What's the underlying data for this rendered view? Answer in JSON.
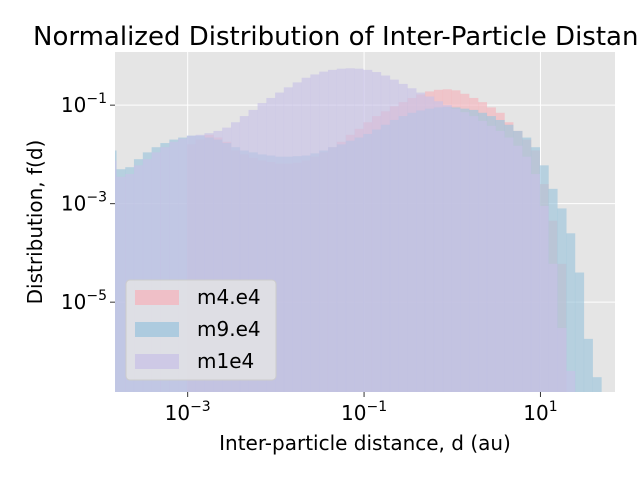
{
  "chart_data": {
    "type": "histogram",
    "title": "Normalized Distribution of Inter-Particle Distan",
    "xlabel": "Inter-particle distance, d (au)",
    "ylabel": "Distribution, f(d)",
    "xscale": "log",
    "yscale": "log",
    "xlim": [
      0.00015,
      70
    ],
    "ylim": [
      1.5e-07,
      1.2
    ],
    "grid": true,
    "legend_position": "lower-left",
    "xticks": [
      {
        "base": "10",
        "exp": "−3",
        "value": 0.001
      },
      {
        "base": "10",
        "exp": "−1",
        "value": 0.1
      },
      {
        "base": "10",
        "exp": "1",
        "value": 10
      }
    ],
    "yticks": [
      {
        "base": "10",
        "exp": "−1",
        "value": 0.1
      },
      {
        "base": "10",
        "exp": "−3",
        "value": 0.001
      },
      {
        "base": "10",
        "exp": "−5",
        "value": 1e-05
      }
    ],
    "series": [
      {
        "name": "m4.e4",
        "color": "#f4b4bc",
        "bins": [
          [
            0.00098,
            0.00123,
            0.016
          ],
          [
            0.00123,
            0.00155,
            0.02
          ],
          [
            0.00155,
            0.00196,
            0.025
          ],
          [
            0.00196,
            0.00246,
            0.022
          ],
          [
            0.00246,
            0.0031,
            0.018
          ],
          [
            0.0031,
            0.0039,
            0.012
          ],
          [
            0.0039,
            0.0049,
            0.01
          ],
          [
            0.0049,
            0.0062,
            0.0085
          ],
          [
            0.0062,
            0.0078,
            0.0075
          ],
          [
            0.0078,
            0.0098,
            0.007
          ],
          [
            0.0098,
            0.0123,
            0.0065
          ],
          [
            0.0123,
            0.0155,
            0.0065
          ],
          [
            0.0155,
            0.0196,
            0.0068
          ],
          [
            0.0196,
            0.0246,
            0.0075
          ],
          [
            0.0246,
            0.031,
            0.009
          ],
          [
            0.031,
            0.039,
            0.011
          ],
          [
            0.039,
            0.049,
            0.014
          ],
          [
            0.049,
            0.062,
            0.018
          ],
          [
            0.062,
            0.078,
            0.025
          ],
          [
            0.078,
            0.098,
            0.033
          ],
          [
            0.098,
            0.123,
            0.045
          ],
          [
            0.123,
            0.155,
            0.06
          ],
          [
            0.155,
            0.196,
            0.075
          ],
          [
            0.196,
            0.246,
            0.095
          ],
          [
            0.246,
            0.31,
            0.115
          ],
          [
            0.31,
            0.39,
            0.14
          ],
          [
            0.39,
            0.49,
            0.165
          ],
          [
            0.49,
            0.62,
            0.19
          ],
          [
            0.62,
            0.78,
            0.205
          ],
          [
            0.78,
            0.98,
            0.21
          ],
          [
            0.98,
            1.23,
            0.2
          ],
          [
            1.23,
            1.55,
            0.17
          ],
          [
            1.55,
            1.96,
            0.14
          ],
          [
            1.96,
            2.46,
            0.115
          ],
          [
            2.46,
            3.1,
            0.09
          ],
          [
            3.1,
            3.9,
            0.07
          ],
          [
            3.9,
            4.9,
            0.045
          ],
          [
            4.9,
            6.2,
            0.03
          ],
          [
            6.2,
            7.8,
            0.02
          ],
          [
            7.8,
            9.8,
            0.012
          ],
          [
            9.8,
            12.3,
            0.0025
          ],
          [
            12.3,
            15.5,
            0.00045
          ],
          [
            15.5,
            19.6,
            6e-05
          ]
        ]
      },
      {
        "name": "m9.e4",
        "color": "#9cc4dc",
        "bins": [
          [
            0.00012,
            0.000155,
            0.012
          ],
          [
            0.000155,
            0.000196,
            0.005
          ],
          [
            0.000196,
            0.000246,
            0.0055
          ],
          [
            0.000246,
            0.00031,
            0.008
          ],
          [
            0.00031,
            0.00039,
            0.011
          ],
          [
            0.00039,
            0.00049,
            0.014
          ],
          [
            0.00049,
            0.00062,
            0.017
          ],
          [
            0.00062,
            0.00078,
            0.02
          ],
          [
            0.00078,
            0.00098,
            0.022
          ],
          [
            0.00098,
            0.00123,
            0.024
          ],
          [
            0.00123,
            0.00155,
            0.024
          ],
          [
            0.00155,
            0.00196,
            0.022
          ],
          [
            0.00196,
            0.00246,
            0.02
          ],
          [
            0.00246,
            0.0031,
            0.017
          ],
          [
            0.0031,
            0.0039,
            0.014
          ],
          [
            0.0039,
            0.0049,
            0.012
          ],
          [
            0.0049,
            0.0062,
            0.011
          ],
          [
            0.0062,
            0.0078,
            0.01
          ],
          [
            0.0078,
            0.0098,
            0.0095
          ],
          [
            0.0098,
            0.0123,
            0.009
          ],
          [
            0.0123,
            0.0155,
            0.009
          ],
          [
            0.0155,
            0.0196,
            0.0092
          ],
          [
            0.0196,
            0.0246,
            0.0095
          ],
          [
            0.0246,
            0.031,
            0.0105
          ],
          [
            0.031,
            0.039,
            0.012
          ],
          [
            0.039,
            0.049,
            0.014
          ],
          [
            0.049,
            0.062,
            0.016
          ],
          [
            0.062,
            0.078,
            0.019
          ],
          [
            0.078,
            0.098,
            0.022
          ],
          [
            0.098,
            0.123,
            0.026
          ],
          [
            0.123,
            0.155,
            0.032
          ],
          [
            0.155,
            0.196,
            0.04
          ],
          [
            0.196,
            0.246,
            0.05
          ],
          [
            0.246,
            0.31,
            0.06
          ],
          [
            0.31,
            0.39,
            0.07
          ],
          [
            0.39,
            0.49,
            0.078
          ],
          [
            0.49,
            0.62,
            0.085
          ],
          [
            0.62,
            0.78,
            0.09
          ],
          [
            0.78,
            0.98,
            0.092
          ],
          [
            0.98,
            1.23,
            0.09
          ],
          [
            1.23,
            1.55,
            0.085
          ],
          [
            1.55,
            1.96,
            0.08
          ],
          [
            1.96,
            2.46,
            0.07
          ],
          [
            2.46,
            3.1,
            0.06
          ],
          [
            3.1,
            3.9,
            0.05
          ],
          [
            3.9,
            4.9,
            0.04
          ],
          [
            4.9,
            6.2,
            0.03
          ],
          [
            6.2,
            7.8,
            0.022
          ],
          [
            7.8,
            9.8,
            0.014
          ],
          [
            9.8,
            12.3,
            0.006
          ],
          [
            12.3,
            15.5,
            0.002
          ],
          [
            15.5,
            19.6,
            0.0008
          ],
          [
            19.6,
            24.6,
            0.00025
          ],
          [
            24.6,
            31,
            4e-05
          ],
          [
            31,
            39,
            1.8e-06
          ],
          [
            39,
            49,
            3e-07
          ]
        ]
      },
      {
        "name": "m1e4",
        "color": "#c8c2e6",
        "bins": [
          [
            6e-05,
            7e-05,
            0.026
          ],
          [
            7e-05,
            0.00012,
            1.5e-07
          ],
          [
            0.00012,
            0.000155,
            0.0075
          ],
          [
            0.000155,
            0.000196,
            0.0035
          ],
          [
            0.000196,
            0.000246,
            0.004
          ],
          [
            0.000246,
            0.00031,
            0.006
          ],
          [
            0.00031,
            0.00039,
            0.008
          ],
          [
            0.00039,
            0.00049,
            0.011
          ],
          [
            0.00049,
            0.00062,
            0.014
          ],
          [
            0.00062,
            0.00078,
            0.018
          ],
          [
            0.00078,
            0.00098,
            0.021
          ],
          [
            0.00098,
            0.00123,
            0.024
          ],
          [
            0.00123,
            0.00155,
            0.025
          ],
          [
            0.00155,
            0.00196,
            0.027
          ],
          [
            0.00196,
            0.00246,
            0.03
          ],
          [
            0.00246,
            0.0031,
            0.035
          ],
          [
            0.0031,
            0.0039,
            0.045
          ],
          [
            0.0039,
            0.0049,
            0.06
          ],
          [
            0.0049,
            0.0062,
            0.08
          ],
          [
            0.0062,
            0.0078,
            0.11
          ],
          [
            0.0078,
            0.0098,
            0.14
          ],
          [
            0.0098,
            0.0123,
            0.18
          ],
          [
            0.0123,
            0.0155,
            0.23
          ],
          [
            0.0155,
            0.0196,
            0.29
          ],
          [
            0.0196,
            0.0246,
            0.36
          ],
          [
            0.0246,
            0.031,
            0.42
          ],
          [
            0.031,
            0.039,
            0.48
          ],
          [
            0.039,
            0.049,
            0.52
          ],
          [
            0.049,
            0.062,
            0.55
          ],
          [
            0.062,
            0.078,
            0.56
          ],
          [
            0.078,
            0.098,
            0.55
          ],
          [
            0.098,
            0.123,
            0.52
          ],
          [
            0.123,
            0.155,
            0.47
          ],
          [
            0.155,
            0.196,
            0.4
          ],
          [
            0.196,
            0.246,
            0.33
          ],
          [
            0.246,
            0.31,
            0.27
          ],
          [
            0.31,
            0.39,
            0.22
          ],
          [
            0.39,
            0.49,
            0.18
          ],
          [
            0.49,
            0.62,
            0.15
          ],
          [
            0.62,
            0.78,
            0.12
          ],
          [
            0.78,
            0.98,
            0.1
          ],
          [
            0.98,
            1.23,
            0.085
          ],
          [
            1.23,
            1.55,
            0.072
          ],
          [
            1.55,
            1.96,
            0.06
          ],
          [
            1.96,
            2.46,
            0.048
          ],
          [
            2.46,
            3.1,
            0.038
          ],
          [
            3.1,
            3.9,
            0.03
          ],
          [
            3.9,
            4.9,
            0.022
          ],
          [
            4.9,
            6.2,
            0.015
          ],
          [
            6.2,
            7.8,
            0.009
          ],
          [
            7.8,
            9.8,
            0.004
          ],
          [
            9.8,
            12.3,
            0.0009
          ],
          [
            12.3,
            15.5,
            6e-05
          ],
          [
            15.5,
            19.6,
            3e-06
          ],
          [
            19.6,
            24.6,
            4e-07
          ]
        ]
      }
    ]
  }
}
